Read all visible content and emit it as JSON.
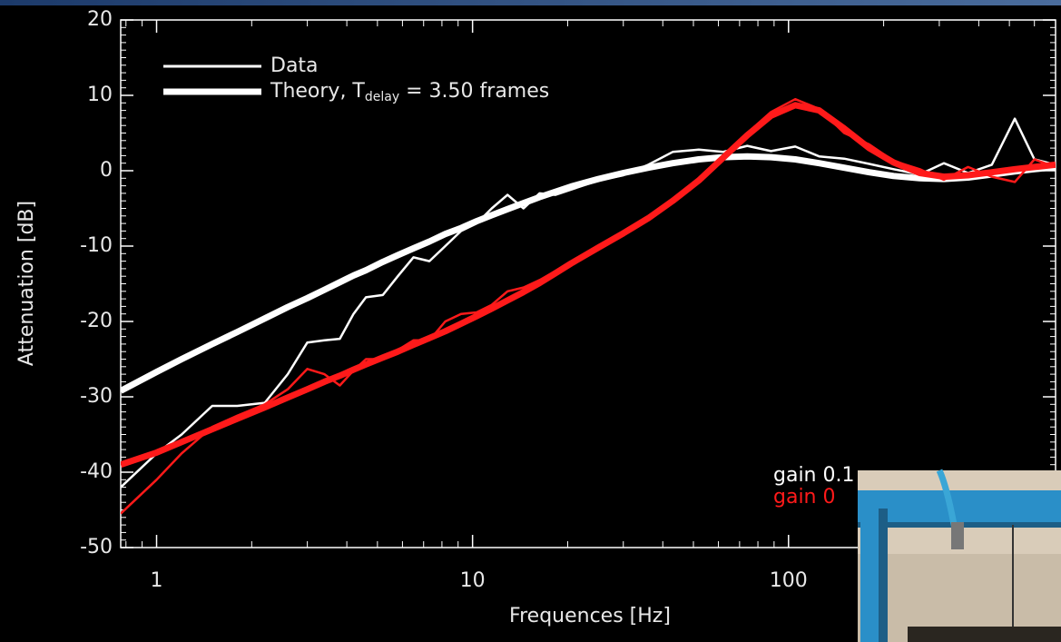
{
  "chart_data": {
    "type": "line",
    "x_label": "Frequences [Hz]",
    "y_label": "Attenuation [dB]",
    "xlog": true,
    "xlim": [
      0.77,
      700
    ],
    "ylim": [
      -50,
      20
    ],
    "xticks": [
      1,
      10,
      100
    ],
    "xticks_minor": [
      0.8,
      0.9,
      2,
      3,
      4,
      5,
      6,
      7,
      8,
      9,
      20,
      30,
      40,
      50,
      60,
      70,
      80,
      90,
      200,
      300,
      400,
      500,
      600,
      700
    ],
    "yticks": [
      -50,
      -40,
      -30,
      -20,
      -10,
      0,
      10,
      20
    ],
    "yminor_step": 1,
    "x": [
      0.77,
      1,
      1.2,
      1.5,
      1.8,
      2.2,
      2.6,
      3,
      3.4,
      3.8,
      4.2,
      4.6,
      5.2,
      5.8,
      6.5,
      7.3,
      8.2,
      9.2,
      10.3,
      11.5,
      12.9,
      14.5,
      16.3,
      18.3,
      20.5,
      25,
      30,
      36,
      43,
      52,
      62,
      74,
      88,
      105,
      125,
      150,
      180,
      215,
      260,
      310,
      370,
      440,
      520,
      600,
      700
    ],
    "series": [
      {
        "color": "#ffffff",
        "line_width": 2.5,
        "values": [
          -42,
          -37.5,
          -35,
          -31.2,
          -31.2,
          -30.8,
          -27,
          -22.8,
          -22.5,
          -22.3,
          -19,
          -16.8,
          -16.5,
          -14,
          -11.5,
          -12,
          -10,
          -8,
          -7,
          -5,
          -3.2,
          -5,
          -3,
          -3.2,
          -2.5,
          -1.3,
          -0.6,
          0.8,
          2.5,
          2.8,
          2.5,
          3.3,
          2.6,
          3.2,
          1.9,
          1.6,
          0.9,
          0.2,
          -0.5,
          1,
          -0.3,
          0.8,
          6.9,
          1.5,
          0.8
        ]
      },
      {
        "color": "#ffffff",
        "line_width": 7,
        "values": [
          -29.2,
          -26.7,
          -25,
          -23,
          -21.4,
          -19.6,
          -18.1,
          -16.9,
          -15.8,
          -14.8,
          -13.9,
          -13.2,
          -12.1,
          -11.2,
          -10.3,
          -9.4,
          -8.4,
          -7.6,
          -6.7,
          -5.9,
          -5.1,
          -4.3,
          -3.5,
          -2.8,
          -2.1,
          -1.1,
          -0.3,
          0.4,
          1,
          1.5,
          1.8,
          1.9,
          1.8,
          1.5,
          1,
          0.4,
          -0.2,
          -0.7,
          -1,
          -1.1,
          -0.9,
          -0.5,
          -0.1,
          0.2,
          0.5
        ]
      },
      {
        "color": "#ff1a1a",
        "line_width": 2.5,
        "values": [
          -45.5,
          -41,
          -37.5,
          -34,
          -32.5,
          -31,
          -29,
          -26.3,
          -27,
          -28.5,
          -26.5,
          -25,
          -25,
          -23.8,
          -22.5,
          -22.5,
          -20,
          -19,
          -18.8,
          -17.8,
          -16,
          -15.5,
          -14.5,
          -13.3,
          -12.5,
          -10,
          -8.5,
          -6.5,
          -3.8,
          -1,
          2,
          5,
          7.8,
          9.5,
          8.2,
          5,
          3.5,
          1.3,
          0.2,
          -1.2,
          0.5,
          -0.8,
          -1.5,
          1.5,
          0.5
        ]
      },
      {
        "color": "#ff1a1a",
        "line_width": 7,
        "values": [
          -39,
          -37.4,
          -36,
          -34.3,
          -32.9,
          -31.4,
          -30.1,
          -29,
          -28,
          -27.2,
          -26.4,
          -25.7,
          -24.8,
          -24,
          -23.1,
          -22.2,
          -21.3,
          -20.3,
          -19.3,
          -18.3,
          -17.2,
          -16.1,
          -14.9,
          -13.6,
          -12.3,
          -10.2,
          -8.3,
          -6.3,
          -4,
          -1.3,
          1.7,
          4.7,
          7.3,
          8.7,
          8,
          5.6,
          3,
          1.1,
          -0.3,
          -0.8,
          -0.6,
          -0.2,
          0.2,
          0.5,
          0.8
        ]
      }
    ],
    "legend": [
      {
        "text": "Data",
        "line_width": 3
      },
      {
        "text": "Theory, T",
        "subscript": "delay",
        "text_after": " = 3.50 frames",
        "line_width": 7
      }
    ],
    "annotations": [
      {
        "text": "gain 0.1",
        "color": "#ffffff"
      },
      {
        "text": "gain 0",
        "color": "#ff1a1a"
      }
    ]
  }
}
